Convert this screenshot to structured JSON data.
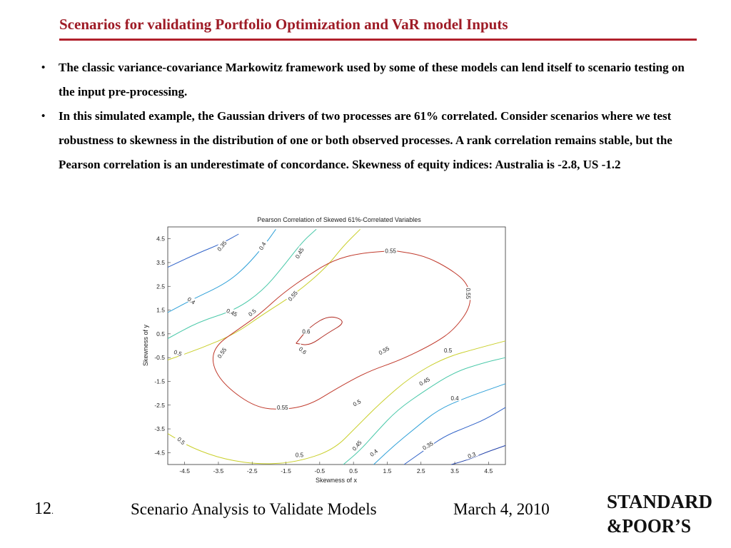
{
  "slide": {
    "title": "Scenarios for validating Portfolio Optimization and VaR model Inputs",
    "bullets": [
      "The classic variance-covariance Markowitz framework used by some of these models can lend itself to scenario testing on the input pre-processing.",
      "In this simulated example, the Gaussian drivers of two processes are 61% correlated. Consider scenarios where we test robustness to skewness in the distribution of one or both observed processes.  A rank correlation remains stable, but the Pearson correlation is an underestimate of concordance. Skewness of equity indices: Australia is -2.8, US -1.2"
    ],
    "bullet_symbol": "•"
  },
  "chart_data": {
    "type": "contour",
    "title": "Pearson Correlation of Skewed 61%-Correlated Variables",
    "xlabel": "Skewness of x",
    "ylabel": "Skewness of y",
    "xlim": [
      -5,
      5
    ],
    "ylim": [
      -5,
      5
    ],
    "x_ticks": [
      "-4.5",
      "-3.5",
      "-2.5",
      "-1.5",
      "-0.5",
      "0.5",
      "1.5",
      "2.5",
      "3.5",
      "4.5"
    ],
    "y_ticks": [
      "4.5",
      "3.5",
      "2.5",
      "1.5",
      "0.5",
      "-0.5",
      "-1.5",
      "-2.5",
      "-3.5",
      "-4.5"
    ],
    "levels": [
      {
        "label": "0.3",
        "color": "#1f3fa8"
      },
      {
        "label": "0.35",
        "color": "#2f62c8"
      },
      {
        "label": "0.4",
        "color": "#2ea0d8"
      },
      {
        "label": "0.45",
        "color": "#48c8a8"
      },
      {
        "label": "0.5",
        "color": "#c9cf2a"
      },
      {
        "label": "0.55",
        "color": "#c0392b"
      },
      {
        "label": "0.6",
        "color": "#b02a20"
      }
    ],
    "contours": [
      {
        "level": "0.35",
        "color": "#2f62c8",
        "label": "0.35",
        "label_at": [
          -3.4,
          4.2
        ],
        "points": [
          [
            -5,
            3.3
          ],
          [
            -4.1,
            3.9
          ],
          [
            -3.4,
            4.3
          ],
          [
            -2.9,
            4.7
          ]
        ]
      },
      {
        "level": "0.4",
        "color": "#2ea0d8",
        "label": "0.4",
        "label_at": [
          -4.3,
          1.9
        ],
        "points": [
          [
            -5,
            1.4
          ],
          [
            -4.2,
            2.0
          ],
          [
            -3.3,
            2.6
          ],
          [
            -2.7,
            3.3
          ],
          [
            -2.1,
            4.3
          ],
          [
            -1.8,
            4.9
          ]
        ]
      },
      {
        "level": "0.45",
        "color": "#48c8a8",
        "label": "0.45",
        "label_at": [
          -3.2,
          1.4
        ],
        "points": [
          [
            -5,
            0.3
          ],
          [
            -4.1,
            1.0
          ],
          [
            -3.0,
            1.5
          ],
          [
            -2.2,
            2.3
          ],
          [
            -1.6,
            3.3
          ],
          [
            -1.0,
            4.4
          ],
          [
            -0.6,
            4.9
          ]
        ]
      },
      {
        "level": "0.45b",
        "color": "#48c8a8",
        "label": "0.45",
        "label_at": [
          -1.2,
          4.2
        ],
        "points": []
      },
      {
        "level": "0.5",
        "color": "#c9cf2a",
        "label": "0.5",
        "label_at": [
          -4.7,
          -0.3
        ],
        "points": [
          [
            -5,
            -0.6
          ],
          [
            -4.0,
            -0.1
          ],
          [
            -3.0,
            0.5
          ],
          [
            -2.2,
            1.3
          ],
          [
            -1.2,
            2.2
          ],
          [
            -0.3,
            3.3
          ],
          [
            0.2,
            4.2
          ],
          [
            0.7,
            4.9
          ]
        ]
      },
      {
        "level": "0.5b",
        "color": "#c9cf2a",
        "label": "0.5",
        "label_at": [
          -2.5,
          1.4
        ],
        "points": []
      },
      {
        "level": "0.55",
        "color": "#c0392b",
        "label": "0.55",
        "label_at": [
          1.7,
          4.0
        ],
        "points": [
          [
            1.7,
            4.0
          ],
          [
            2.6,
            3.8
          ],
          [
            3.4,
            3.2
          ],
          [
            3.9,
            2.6
          ],
          [
            4.0,
            1.7
          ],
          [
            3.5,
            0.7
          ],
          [
            2.9,
            0.1
          ],
          [
            1.9,
            -0.6
          ],
          [
            0.9,
            -1.1
          ],
          [
            0.0,
            -1.8
          ],
          [
            -0.8,
            -2.5
          ],
          [
            -1.6,
            -2.7
          ],
          [
            -2.4,
            -2.6
          ],
          [
            -3.3,
            -1.7
          ],
          [
            -3.7,
            -0.8
          ],
          [
            -3.6,
            0.0
          ],
          [
            -2.9,
            0.7
          ],
          [
            -2.3,
            1.3
          ],
          [
            -1.6,
            2.2
          ],
          [
            -0.8,
            3.0
          ],
          [
            -0.1,
            3.6
          ],
          [
            0.7,
            3.9
          ],
          [
            1.7,
            4.0
          ]
        ]
      },
      {
        "level": "0.6",
        "color": "#b02a20",
        "label": "0.6",
        "label_at": [
          -1.2,
          0.5
        ],
        "points": [
          [
            -1.2,
            0.1
          ],
          [
            -0.8,
            0.8
          ],
          [
            -0.2,
            1.3
          ],
          [
            0.3,
            1.0
          ],
          [
            -0.3,
            0.5
          ],
          [
            -0.8,
            0.0
          ],
          [
            -1.2,
            0.1
          ]
        ]
      },
      {
        "level": "0.5c",
        "color": "#c9cf2a",
        "label": "0.5",
        "label_at": [
          3.3,
          -0.2
        ],
        "points": [
          [
            -5,
            -3.7
          ],
          [
            -4.3,
            -4.3
          ],
          [
            -3.3,
            -4.8
          ],
          [
            -2.2,
            -5.0
          ],
          [
            -1.2,
            -4.9
          ],
          [
            -0.1,
            -4.4
          ],
          [
            0.6,
            -3.4
          ],
          [
            1.3,
            -2.4
          ],
          [
            2.2,
            -1.3
          ],
          [
            3.2,
            -0.5
          ],
          [
            4.2,
            -0.1
          ],
          [
            5,
            0.2
          ]
        ]
      },
      {
        "level": "0.45c",
        "color": "#48c8a8",
        "label": "0.45",
        "label_at": [
          2.6,
          -1.5
        ],
        "points": [
          [
            0.2,
            -5.0
          ],
          [
            0.7,
            -4.4
          ],
          [
            1.2,
            -3.6
          ],
          [
            1.8,
            -2.7
          ],
          [
            2.6,
            -1.9
          ],
          [
            3.5,
            -1.1
          ],
          [
            4.4,
            -0.7
          ],
          [
            5,
            -0.5
          ]
        ]
      },
      {
        "level": "0.4b",
        "color": "#2ea0d8",
        "label": "0.4",
        "label_at": [
          3.5,
          -2.2
        ],
        "points": [
          [
            1.1,
            -5.0
          ],
          [
            1.7,
            -4.2
          ],
          [
            2.3,
            -3.5
          ],
          [
            3.0,
            -2.7
          ],
          [
            3.8,
            -2.2
          ],
          [
            5,
            -1.6
          ]
        ]
      },
      {
        "level": "0.35b",
        "color": "#2f62c8",
        "label": "0.35",
        "label_at": [
          2.6,
          -4.2
        ],
        "points": [
          [
            2.0,
            -5.0
          ],
          [
            2.6,
            -4.4
          ],
          [
            3.2,
            -3.8
          ],
          [
            3.9,
            -3.4
          ],
          [
            4.4,
            -3.1
          ],
          [
            5,
            -2.6
          ]
        ]
      },
      {
        "level": "0.3",
        "color": "#1f3fa8",
        "label": "0.3",
        "label_at": [
          4.0,
          -4.6
        ],
        "points": [
          [
            3.4,
            -5.0
          ],
          [
            3.9,
            -4.8
          ],
          [
            4.4,
            -4.5
          ],
          [
            5,
            -4.2
          ]
        ]
      }
    ],
    "inline_labels": [
      {
        "text": "0.35",
        "at": [
          -3.4,
          4.2
        ],
        "rot": -50
      },
      {
        "text": "0.4",
        "at": [
          -2.2,
          4.2
        ],
        "rot": -60
      },
      {
        "text": "0.45",
        "at": [
          -1.1,
          3.9
        ],
        "rot": -60
      },
      {
        "text": "0.4",
        "at": [
          -4.3,
          1.9
        ],
        "rot": 35
      },
      {
        "text": "0.45",
        "at": [
          -3.1,
          1.4
        ],
        "rot": 25
      },
      {
        "text": "0.5",
        "at": [
          -2.5,
          1.4
        ],
        "rot": -40
      },
      {
        "text": "0.55",
        "at": [
          -1.3,
          2.1
        ],
        "rot": -50
      },
      {
        "text": "0.5",
        "at": [
          -4.7,
          -0.3
        ],
        "rot": 20
      },
      {
        "text": "0.55",
        "at": [
          -3.4,
          -0.3
        ],
        "rot": -55
      },
      {
        "text": "0.6",
        "at": [
          -0.9,
          0.6
        ],
        "rot": 0
      },
      {
        "text": "0.6",
        "at": [
          -1.0,
          -0.2
        ],
        "rot": 40
      },
      {
        "text": "0.55",
        "at": [
          1.6,
          4.0
        ],
        "rot": 0
      },
      {
        "text": "0.55",
        "at": [
          3.9,
          2.2
        ],
        "rot": 90
      },
      {
        "text": "0.55",
        "at": [
          1.4,
          -0.2
        ],
        "rot": -30
      },
      {
        "text": "0.5",
        "at": [
          3.3,
          -0.2
        ],
        "rot": 0
      },
      {
        "text": "0.55",
        "at": [
          -1.6,
          -2.6
        ],
        "rot": 0
      },
      {
        "text": "0.45",
        "at": [
          2.6,
          -1.5
        ],
        "rot": -30
      },
      {
        "text": "0.5",
        "at": [
          0.6,
          -2.4
        ],
        "rot": -30
      },
      {
        "text": "0.4",
        "at": [
          3.5,
          -2.2
        ],
        "rot": 0
      },
      {
        "text": "0.5",
        "at": [
          -4.6,
          -4.0
        ],
        "rot": 40
      },
      {
        "text": "0.5",
        "at": [
          -1.1,
          -4.6
        ],
        "rot": 0
      },
      {
        "text": "0.45",
        "at": [
          0.6,
          -4.2
        ],
        "rot": -50
      },
      {
        "text": "0.4",
        "at": [
          1.1,
          -4.5
        ],
        "rot": -40
      },
      {
        "text": "0.35",
        "at": [
          2.7,
          -4.2
        ],
        "rot": -30
      },
      {
        "text": "0.3",
        "at": [
          4.0,
          -4.6
        ],
        "rot": -20
      }
    ],
    "grid": false,
    "legend": "none"
  },
  "footer": {
    "page_number": "12",
    "page_number_suffix": ".",
    "text": "Scenario Analysis to Validate Models",
    "date": "March 4, 2010"
  },
  "logo": {
    "line1": "STANDARD",
    "line2": "&POOR’S"
  }
}
